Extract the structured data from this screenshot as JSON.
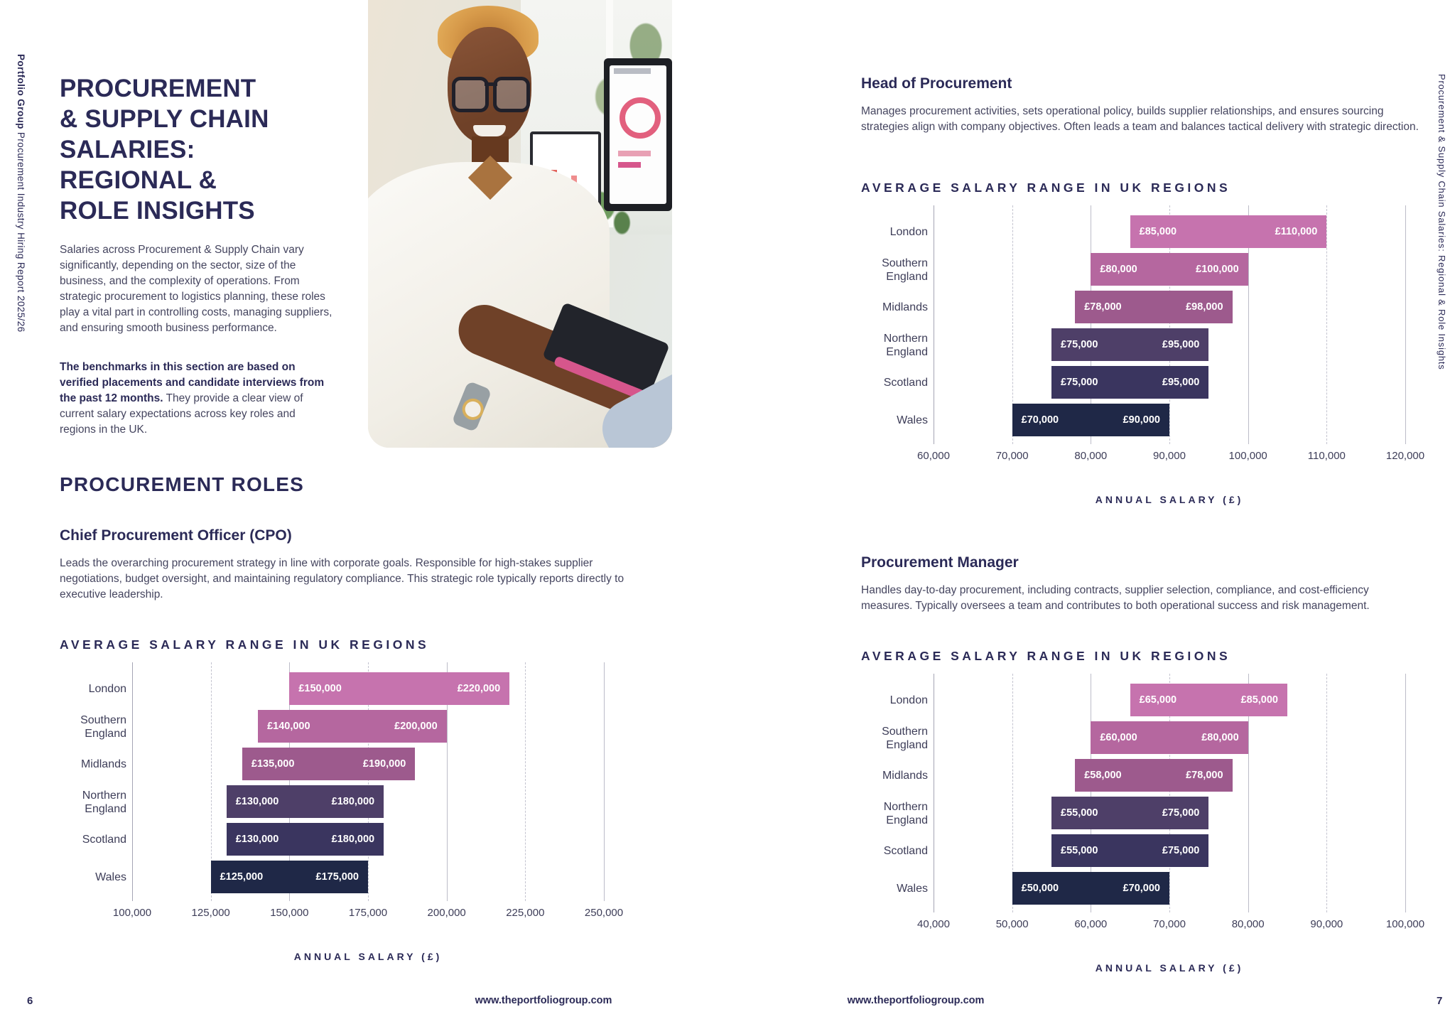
{
  "page_left": {
    "page_number": "6",
    "sidebar_bold": "Portfolio Group",
    "sidebar_rest": " Procurement Industry Hiring Report 2025/26",
    "title_lines": [
      "PROCUREMENT",
      "& SUPPLY CHAIN",
      "SALARIES:",
      "REGIONAL &",
      "ROLE INSIGHTS"
    ],
    "intro": "Salaries across Procurement & Supply Chain vary significantly, depending on the sector, size of the business, and the complexity of operations. From strategic procurement to logistics planning, these roles play a vital part in controlling costs, managing suppliers, and ensuring smooth business performance.",
    "benchmark_bold": "The benchmarks in this section are based on verified placements and candidate interviews from the past 12 months.",
    "benchmark_rest": " They provide a clear view of current salary expectations across key roles and regions in the UK.",
    "section_heading": "PROCUREMENT ROLES",
    "role": {
      "heading": "Chief Procurement Officer (CPO)",
      "description": "Leads the overarching procurement strategy in line with corporate goals. Responsible for high-stakes supplier negotiations, budget oversight, and maintaining regulatory compliance. This strategic role typically reports directly to executive leadership."
    },
    "footer_url": "www.theportfoliogroup.com"
  },
  "page_right": {
    "page_number": "7",
    "sidebar_text": "Procurement & Supply Chain Salaries: Regional & Role Insights",
    "roles": [
      {
        "heading": "Head of Procurement",
        "description": "Manages procurement activities, sets operational policy, builds supplier relationships, and ensures sourcing strategies align with company objectives. Often leads a team and balances tactical delivery with strategic direction."
      },
      {
        "heading": "Procurement Manager",
        "description": "Handles day-to-day procurement, including contracts, supplier selection, compliance, and cost-efficiency measures. Typically oversees a team and contributes to both operational success and risk management."
      }
    ],
    "footer_url": "www.theportfoliogroup.com"
  },
  "colors": {
    "heading": "#2b2a57",
    "body_text": "#45455f",
    "bar_palette": [
      "#c673ae",
      "#b5679f",
      "#9d5a8d",
      "#4e3f68",
      "#3a355f",
      "#1f2847"
    ],
    "bar_label_text": "#ffffff",
    "gridline": "#bcbcc8"
  },
  "chart_data": [
    {
      "type": "bar",
      "variant": "horizontal-range",
      "role": "Chief Procurement Officer (CPO)",
      "title": "AVERAGE SALARY RANGE IN UK REGIONS",
      "xlabel": "ANNUAL SALARY (£)",
      "categories": [
        "London",
        "Southern England",
        "Midlands",
        "Northern England",
        "Scotland",
        "Wales"
      ],
      "ranges": [
        [
          150000,
          220000
        ],
        [
          140000,
          200000
        ],
        [
          135000,
          190000
        ],
        [
          130000,
          180000
        ],
        [
          130000,
          180000
        ],
        [
          125000,
          175000
        ]
      ],
      "bar_labels": [
        [
          "£150,000",
          "£220,000"
        ],
        [
          "£140,000",
          "£200,000"
        ],
        [
          "£135,000",
          "£190,000"
        ],
        [
          "£130,000",
          "£180,000"
        ],
        [
          "£130,000",
          "£180,000"
        ],
        [
          "£125,000",
          "£175,000"
        ]
      ],
      "xlim": [
        100000,
        250000
      ],
      "xticks": [
        "100,000",
        "125,000",
        "150,000",
        "175,000",
        "200,000",
        "225,000",
        "250,000"
      ],
      "bar_colors": [
        "#c673ae",
        "#b5679f",
        "#9d5a8d",
        "#4e3f68",
        "#3a355f",
        "#1f2847"
      ],
      "grid": "vertical gridlines, alternating solid/dashed",
      "legend": "none"
    },
    {
      "type": "bar",
      "variant": "horizontal-range",
      "role": "Head of Procurement",
      "title": "AVERAGE SALARY RANGE IN UK REGIONS",
      "xlabel": "ANNUAL SALARY (£)",
      "categories": [
        "London",
        "Southern England",
        "Midlands",
        "Northern England",
        "Scotland",
        "Wales"
      ],
      "ranges": [
        [
          85000,
          110000
        ],
        [
          80000,
          100000
        ],
        [
          78000,
          98000
        ],
        [
          75000,
          95000
        ],
        [
          75000,
          95000
        ],
        [
          70000,
          90000
        ]
      ],
      "bar_labels": [
        [
          "£85,000",
          "£110,000"
        ],
        [
          "£80,000",
          "£100,000"
        ],
        [
          "£78,000",
          "£98,000"
        ],
        [
          "£75,000",
          "£95,000"
        ],
        [
          "£75,000",
          "£95,000"
        ],
        [
          "£70,000",
          "£90,000"
        ]
      ],
      "xlim": [
        60000,
        120000
      ],
      "xticks": [
        "60,000",
        "70,000",
        "80,000",
        "90,000",
        "100,000",
        "110,000",
        "120,000"
      ],
      "bar_colors": [
        "#c673ae",
        "#b5679f",
        "#9d5a8d",
        "#4e3f68",
        "#3a355f",
        "#1f2847"
      ],
      "grid": "vertical gridlines, alternating solid/dashed",
      "legend": "none"
    },
    {
      "type": "bar",
      "variant": "horizontal-range",
      "role": "Procurement Manager",
      "title": "AVERAGE SALARY RANGE IN UK REGIONS",
      "xlabel": "ANNUAL SALARY (£)",
      "categories": [
        "London",
        "Southern England",
        "Midlands",
        "Northern England",
        "Scotland",
        "Wales"
      ],
      "ranges": [
        [
          65000,
          85000
        ],
        [
          60000,
          80000
        ],
        [
          58000,
          78000
        ],
        [
          55000,
          75000
        ],
        [
          55000,
          75000
        ],
        [
          50000,
          70000
        ]
      ],
      "bar_labels": [
        [
          "£65,000",
          "£85,000"
        ],
        [
          "£60,000",
          "£80,000"
        ],
        [
          "£58,000",
          "£78,000"
        ],
        [
          "£55,000",
          "£75,000"
        ],
        [
          "£55,000",
          "£75,000"
        ],
        [
          "£50,000",
          "£70,000"
        ]
      ],
      "xlim": [
        40000,
        100000
      ],
      "xticks": [
        "40,000",
        "50,000",
        "60,000",
        "70,000",
        "80,000",
        "90,000",
        "100,000"
      ],
      "bar_colors": [
        "#c673ae",
        "#b5679f",
        "#9d5a8d",
        "#4e3f68",
        "#3a355f",
        "#1f2847"
      ],
      "grid": "vertical gridlines, alternating solid/dashed",
      "legend": "none"
    }
  ]
}
